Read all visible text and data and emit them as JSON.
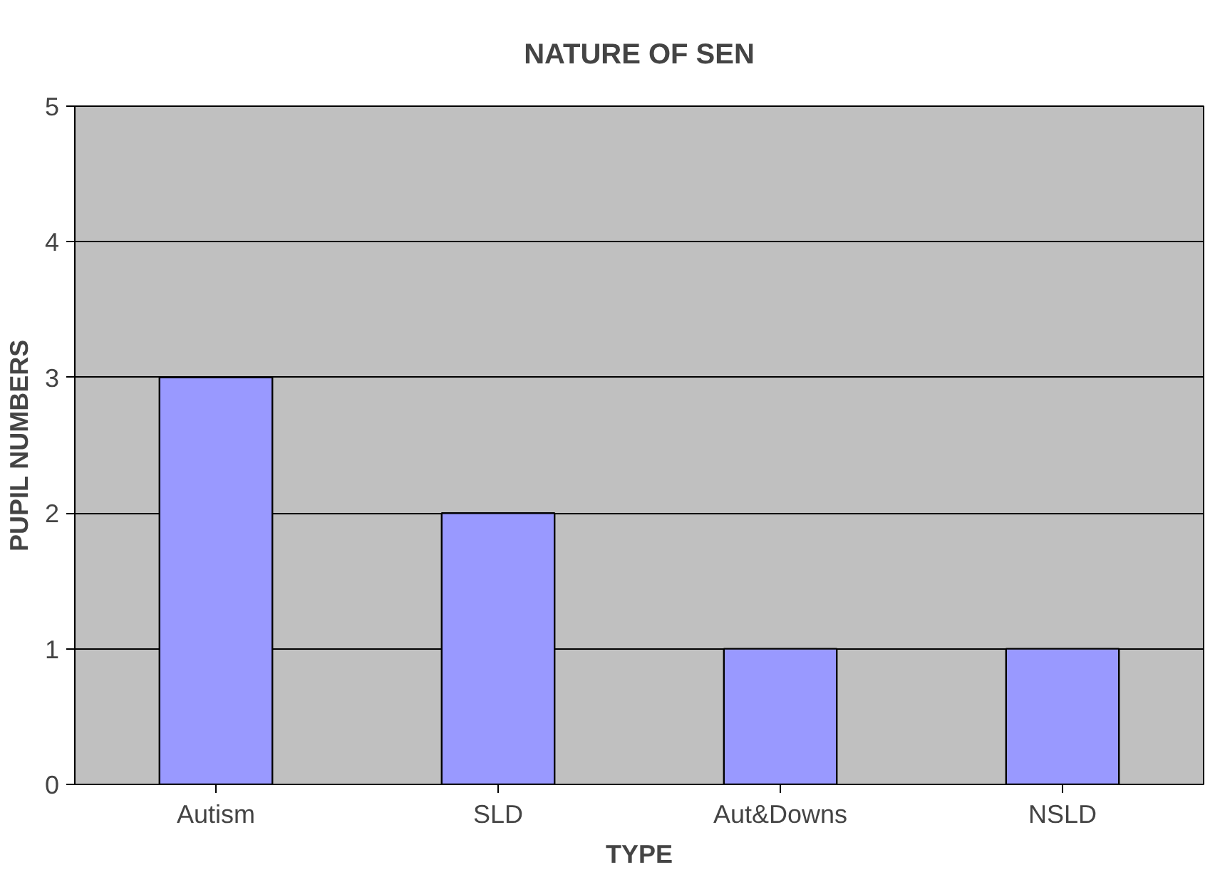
{
  "chart_data": {
    "type": "bar",
    "title": "NATURE OF SEN",
    "xlabel": "TYPE",
    "ylabel": "PUPIL NUMBERS",
    "categories": [
      "Autism",
      "SLD",
      "Aut&Downs",
      "NSLD"
    ],
    "values": [
      3,
      2,
      1,
      1
    ],
    "color": "#9999ff",
    "ylim": [
      0,
      5
    ],
    "yticks": [
      0,
      1,
      2,
      3,
      4,
      5
    ],
    "grid": "y"
  }
}
